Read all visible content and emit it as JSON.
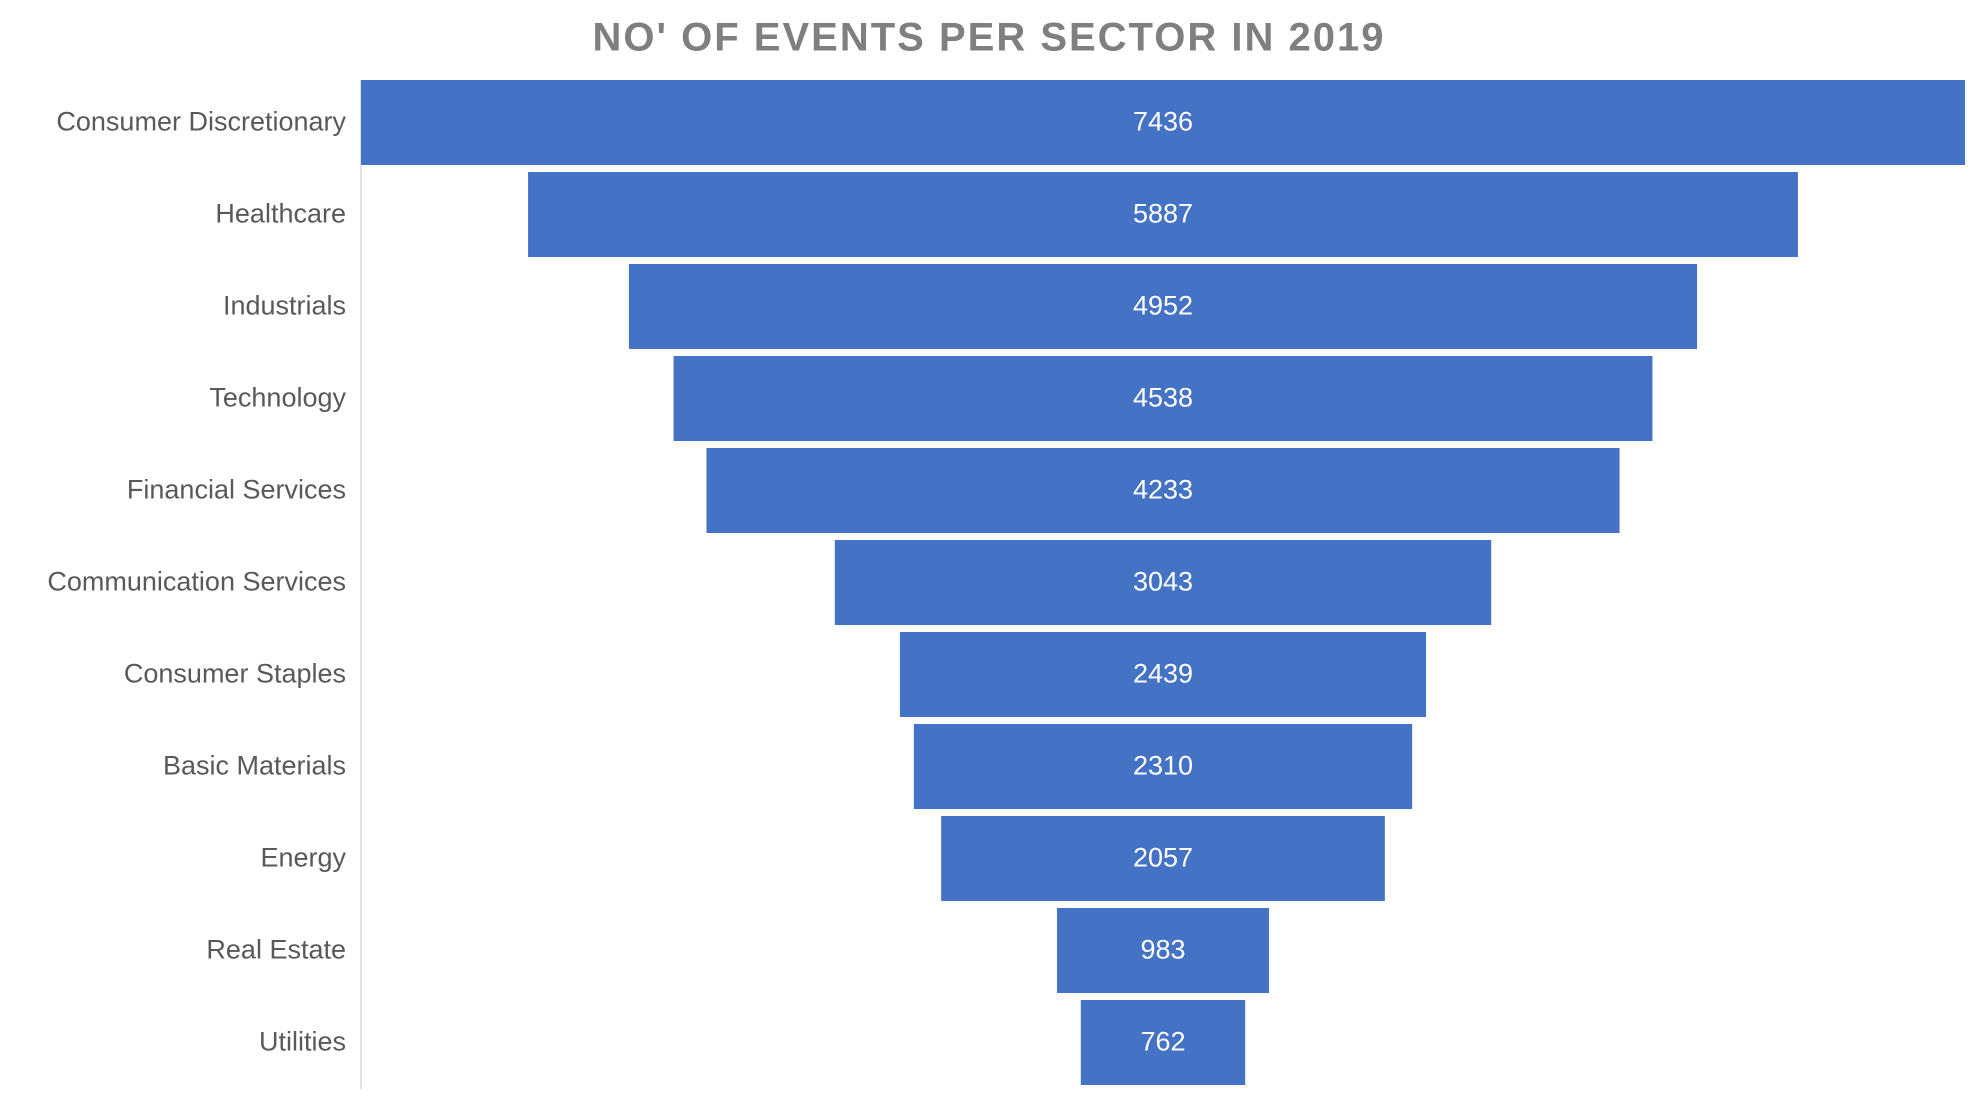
{
  "chart_data": {
    "type": "funnel",
    "title": "NO' OF EVENTS PER SECTOR IN 2019",
    "categories": [
      "Consumer Discretionary",
      "Healthcare",
      "Industrials",
      "Technology",
      "Financial Services",
      "Communication Services",
      "Consumer Staples",
      "Basic Materials",
      "Energy",
      "Real Estate",
      "Utilities"
    ],
    "values": [
      7436,
      5887,
      4952,
      4538,
      4233,
      3043,
      2439,
      2310,
      2057,
      983,
      762
    ],
    "color": "#4472c4"
  }
}
